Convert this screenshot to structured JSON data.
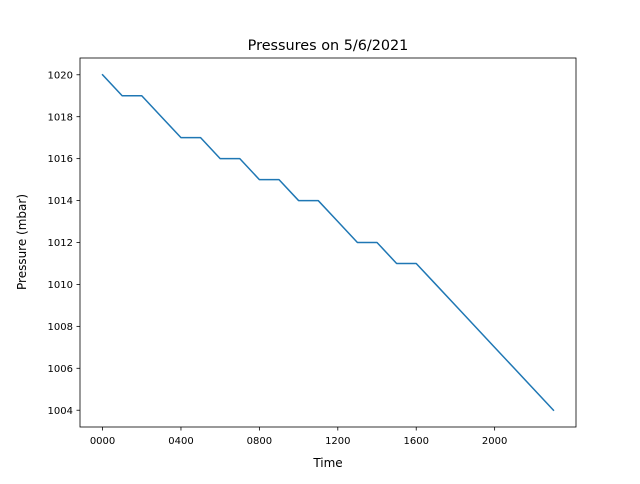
{
  "chart_data": {
    "type": "line",
    "title": "Pressures on 5/6/2021",
    "xlabel": "Time",
    "ylabel": "Pressure (mbar)",
    "x_unit": "hour",
    "xlim": [
      -1.15,
      24.15
    ],
    "ylim": [
      1003.2,
      1020.8
    ],
    "xticks": [
      0,
      4,
      8,
      12,
      16,
      20
    ],
    "xtick_labels": [
      "0000",
      "0400",
      "0800",
      "1200",
      "1600",
      "2000"
    ],
    "yticks": [
      1004,
      1006,
      1008,
      1010,
      1012,
      1014,
      1016,
      1018,
      1020
    ],
    "ytick_labels": [
      "1004",
      "1006",
      "1008",
      "1010",
      "1012",
      "1014",
      "1016",
      "1018",
      "1020"
    ],
    "grid": false,
    "line_color": "#1f77b4",
    "series": [
      {
        "x": [
          0,
          1,
          2,
          3,
          4,
          5,
          6,
          7,
          8,
          9,
          10,
          11,
          12,
          13,
          14,
          15,
          16,
          17,
          18,
          19,
          20,
          21,
          22,
          23
        ],
        "y": [
          1020,
          1019,
          1019,
          1018,
          1017,
          1017,
          1016,
          1016,
          1015,
          1015,
          1014,
          1014,
          1013,
          1012,
          1012,
          1011,
          1011,
          1010,
          1009,
          1008,
          1007,
          1006,
          1005,
          1004
        ]
      }
    ]
  }
}
